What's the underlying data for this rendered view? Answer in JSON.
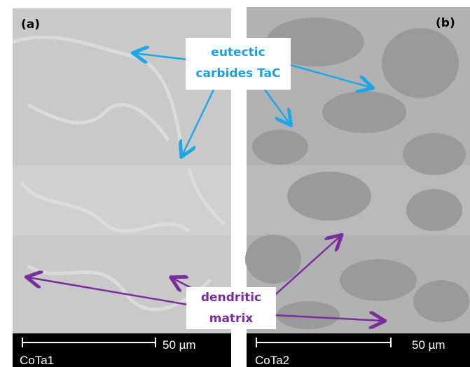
{
  "panels": [
    {
      "label": "(a)",
      "scale_bar": "50 µm",
      "sample": "CoTa1"
    },
    {
      "label": "(b)",
      "scale_bar": "50 µm",
      "sample": "CoTa2"
    }
  ],
  "annotations": {
    "carbides": {
      "line1": "eutectic",
      "line2": "carbides TaC"
    },
    "matrix": {
      "line1": "dendritic",
      "line2": "matrix"
    }
  }
}
